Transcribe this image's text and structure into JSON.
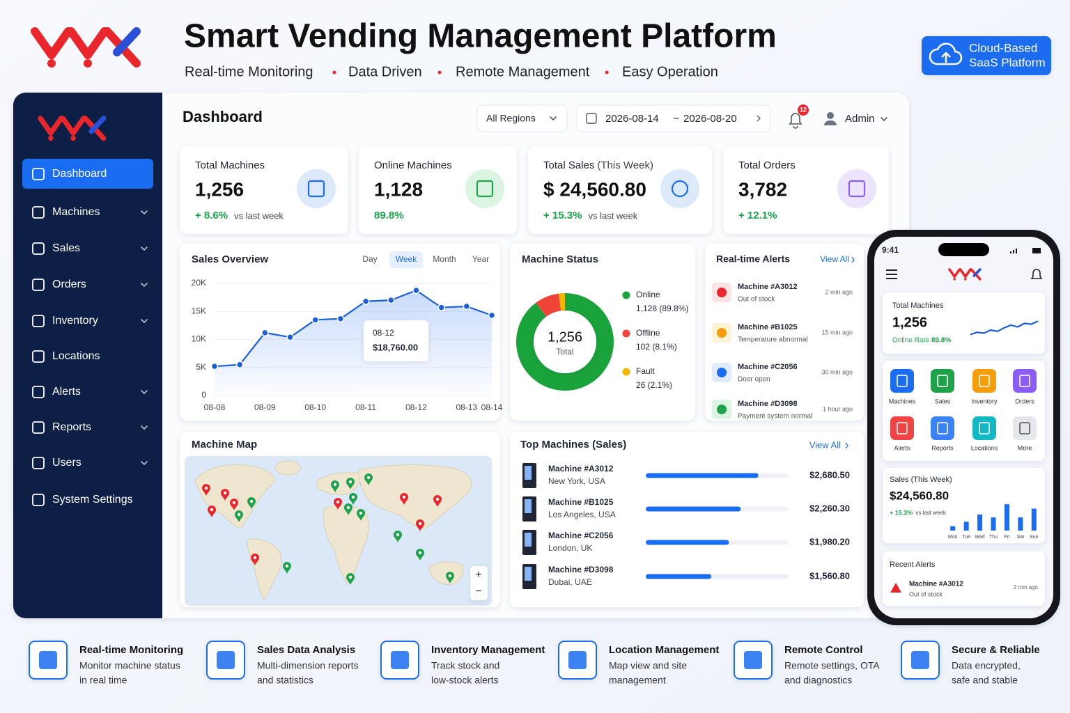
{
  "header": {
    "title": "Smart Vending Management Platform",
    "tagline": [
      "Real-time Monitoring",
      "Data Driven",
      "Remote Management",
      "Easy Operation"
    ],
    "badge": [
      "Cloud-Based",
      "SaaS Platform"
    ]
  },
  "sidebar": {
    "items": [
      "Dashboard",
      "Machines",
      "Sales",
      "Orders",
      "Inventory",
      "Locations",
      "Alerts",
      "Reports",
      "Users",
      "System Settings"
    ],
    "active": 0
  },
  "topbar": {
    "title": "Dashboard",
    "region": "All Regions",
    "date_from": "2026-08-14",
    "date_separator": "~",
    "date_to": "2026-08-20",
    "notifications": "12",
    "user": "Admin"
  },
  "kpis": [
    {
      "label": "Total Machines",
      "value": "1,256",
      "change": "+ 8.6%",
      "note": "vs last week"
    },
    {
      "label": "Online Machines",
      "value": "1,128",
      "change": "89.8%"
    },
    {
      "label": "Total Sales",
      "label_note": "(This Week)",
      "value": "$ 24,560.80",
      "change": "+ 15.3%",
      "note": "vs last week"
    },
    {
      "label": "Total Orders",
      "value": "3,782",
      "change": "+ 12.1%"
    }
  ],
  "sales_overview": {
    "title": "Sales Overview",
    "tabs": [
      "Day",
      "Week",
      "Month",
      "Year"
    ],
    "active_tab": 1,
    "tooltip": {
      "date": "08-12",
      "amount": "$18,760.00"
    }
  },
  "machine_status": {
    "title": "Machine Status",
    "center_value": "1,256",
    "center_label": "Total"
  },
  "alerts": {
    "title": "Real-time Alerts",
    "view_all": "View All",
    "items": [
      {
        "machine": "Machine #A3012",
        "message": "Out of stock",
        "time": "2 min ago",
        "level": "error"
      },
      {
        "machine": "Machine #B1025",
        "message": "Temperature abnormal",
        "time": "15 min ago",
        "level": "warning"
      },
      {
        "machine": "Machine #C2056",
        "message": "Door open",
        "time": "30 min ago",
        "level": "info"
      },
      {
        "machine": "Machine #D3098",
        "message": "Payment system normal",
        "time": "1 hour ago",
        "level": "ok"
      }
    ]
  },
  "machine_map": {
    "title": "Machine Map",
    "zoom": [
      "+",
      "−"
    ]
  },
  "top_machines": {
    "title": "Top Machines (Sales)",
    "view_all": "View All",
    "locations": [
      "New York, USA",
      "Los Angeles, USA",
      "London, UK",
      "Dubai, UAE"
    ]
  },
  "mobile": {
    "time": "9:41",
    "total_label": "Total Machines",
    "total_value": "1,256",
    "online_label": "Online Rate",
    "online_value": "89.8%",
    "shortcuts": [
      {
        "label": "Machines",
        "color": "#1a6cf0"
      },
      {
        "label": "Sales",
        "color": "#1fa24a"
      },
      {
        "label": "Inventory",
        "color": "#f59e0b"
      },
      {
        "label": "Orders",
        "color": "#8b5cf6"
      },
      {
        "label": "Alerts",
        "color": "#ef4444"
      },
      {
        "label": "Reports",
        "color": "#3b82f6"
      },
      {
        "label": "Locations",
        "color": "#14b8c4"
      },
      {
        "label": "More",
        "color": "#e5e7eb"
      }
    ],
    "sales_label": "Sales (This Week)",
    "sales_value": "$24,560.80",
    "sales_change": "+ 15.3%",
    "sales_note": "vs last week",
    "recent_title": "Recent Alerts",
    "recent": {
      "machine": "Machine #A3012",
      "message": "Out of stock",
      "time": "2 min ago"
    }
  },
  "features": [
    {
      "title": "Real-time Monitoring",
      "desc": [
        "Monitor machine status",
        "in real time"
      ]
    },
    {
      "title": "Sales Data Analysis",
      "desc": [
        "Multi-dimension reports",
        "and statistics"
      ]
    },
    {
      "title": "Inventory Management",
      "desc": [
        "Track stock and",
        "low-stock alerts"
      ]
    },
    {
      "title": "Location Management",
      "desc": [
        "Map view and site",
        "management"
      ]
    },
    {
      "title": "Remote Control",
      "desc": [
        "Remote settings, OTA",
        "and diagnostics"
      ]
    },
    {
      "title": "Secure & Reliable",
      "desc": [
        "Data encrypted,",
        "safe and stable"
      ]
    }
  ],
  "chart_data": [
    {
      "type": "line",
      "categories": [
        "08-08",
        null,
        "08-09",
        null,
        "08-10",
        null,
        "08-11",
        null,
        "08-12",
        null,
        "08-13",
        "08-14"
      ],
      "values": [
        5200,
        5500,
        11200,
        10400,
        13500,
        13700,
        16800,
        17000,
        18760,
        15700,
        15900,
        14300
      ],
      "color": "#1a5fd6",
      "ylim": [
        0,
        20000
      ],
      "yticks": [
        0,
        {
          "value": 5000,
          "label": "5K"
        },
        {
          "value": 10000,
          "label": "10K"
        },
        {
          "value": 15000,
          "label": "15K"
        },
        {
          "value": 20000,
          "label": "20K"
        }
      ],
      "grid": true
    },
    {
      "type": "pie",
      "donut": true,
      "categories": [
        "Online",
        "Offline",
        "Fault"
      ],
      "values": [
        1128,
        102,
        26
      ],
      "value_labels": [
        "1,128 (89.8%)",
        "102 (8.1%)",
        "26 (2.1%)"
      ],
      "colors": [
        "#1aa33a",
        "#f04438",
        "#f5b800"
      ]
    },
    {
      "type": "bar",
      "orientation": "horizontal",
      "categories": [
        "Machine #A3012",
        "Machine #B1025",
        "Machine #C2056",
        "Machine #D3098"
      ],
      "values": [
        2680.5,
        2260.3,
        1980.2,
        1560.8
      ],
      "value_labels": [
        "$2,680.50",
        "$2,260.30",
        "$1,980.20",
        "$1,560.80"
      ],
      "color": "#1a6cf0",
      "xlim": [
        0,
        3400
      ]
    },
    {
      "type": "line",
      "values": [
        3,
        4,
        3.6,
        5,
        4.4,
        6,
        7.2,
        6.4,
        8,
        7.6,
        9
      ],
      "color": "#1a5fd6",
      "ylim": [
        0,
        10
      ]
    },
    {
      "type": "bar",
      "orientation": "vertical",
      "categories": [
        "Mon",
        "Tue",
        "Wed",
        "Thu",
        "Fri",
        "Sat",
        "Sun"
      ],
      "values": [
        6,
        12,
        22,
        18,
        36,
        18,
        30
      ],
      "color": "#1a6cf0",
      "ylim": [
        0,
        40
      ]
    }
  ]
}
